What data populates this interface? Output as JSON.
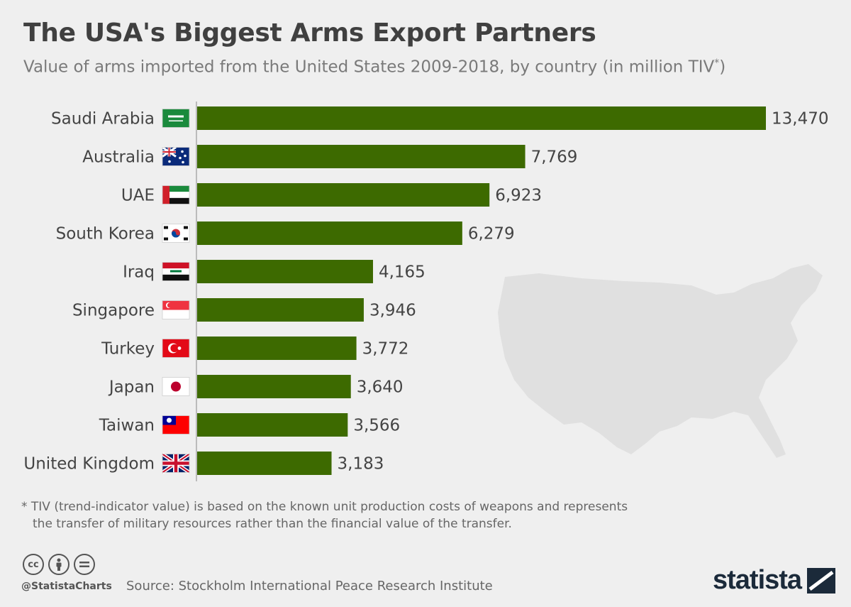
{
  "header": {
    "title": "The USA's Biggest Arms Export Partners",
    "subtitle": "Value of arms imported from the United States 2009-2018, by country (in million TIV",
    "subtitle_mark": "*",
    "subtitle_close": ")"
  },
  "chart_data": {
    "type": "bar",
    "orientation": "horizontal",
    "title": "The USA's Biggest Arms Export Partners",
    "categories": [
      "Saudi Arabia",
      "Australia",
      "UAE",
      "South Korea",
      "Iraq",
      "Singapore",
      "Turkey",
      "Japan",
      "Taiwan",
      "United Kingdom"
    ],
    "values": [
      13470,
      7769,
      6923,
      6279,
      4165,
      3946,
      3772,
      3640,
      3566,
      3183
    ],
    "value_labels": [
      "13,470",
      "7,769",
      "6,923",
      "6,279",
      "4,165",
      "3,946",
      "3,772",
      "3,640",
      "3,566",
      "3,183"
    ],
    "xlim": [
      0,
      13470
    ],
    "grid": false,
    "bar_color": "#3d6a00"
  },
  "footnote": {
    "line1": "* TIV (trend-indicator value) is based on the known unit production costs of weapons and represents",
    "line2": "the transfer of military resources rather than the financial value of the transfer."
  },
  "footer": {
    "cc_icons": [
      "cc",
      "by",
      "nd"
    ],
    "handle": "@StatistaCharts",
    "source": "Source: Stockholm International Peace Research Institute",
    "brand": "statista"
  },
  "colors": {
    "background": "#efefef",
    "bar": "#3d6a00",
    "map": "#e0e0e0"
  },
  "icons": [
    "saudi-arabia-flag-icon",
    "australia-flag-icon",
    "uae-flag-icon",
    "south-korea-flag-icon",
    "iraq-flag-icon",
    "singapore-flag-icon",
    "turkey-flag-icon",
    "japan-flag-icon",
    "taiwan-flag-icon",
    "uk-flag-icon",
    "us-map-icon"
  ]
}
